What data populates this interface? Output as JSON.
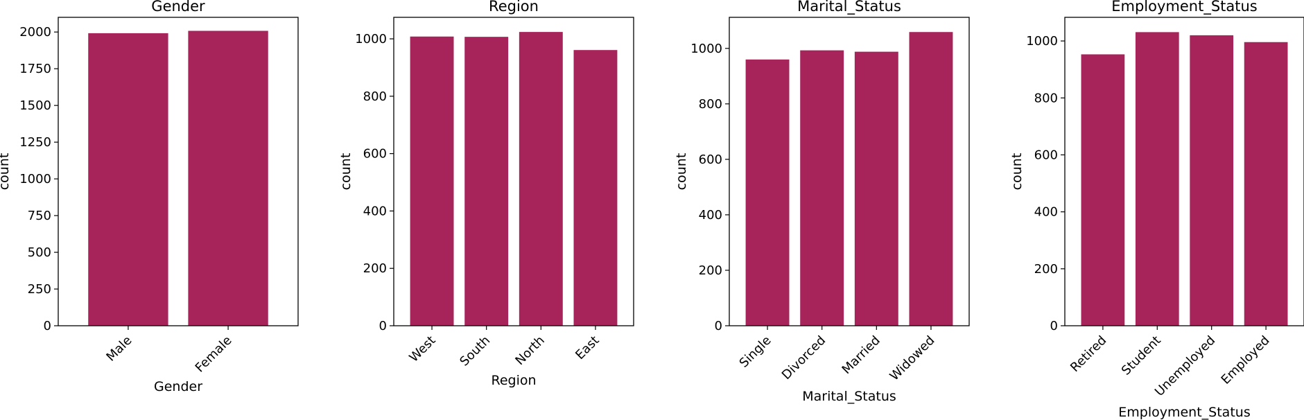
{
  "bar_color": "#a7245a",
  "chart_data": [
    {
      "type": "bar",
      "title": "Gender",
      "xlabel": "Gender",
      "ylabel": "count",
      "categories": [
        "Male",
        "Female"
      ],
      "values": [
        1992,
        2008
      ],
      "ylim": [
        0,
        2100
      ],
      "yticks": [
        0,
        250,
        500,
        750,
        1000,
        1250,
        1500,
        1750,
        2000
      ],
      "grid": false
    },
    {
      "type": "bar",
      "title": "Region",
      "xlabel": "Region",
      "ylabel": "count",
      "categories": [
        "West",
        "South",
        "North",
        "East"
      ],
      "values": [
        1008,
        1007,
        1024,
        961
      ],
      "ylim": [
        0,
        1075
      ],
      "yticks": [
        0,
        200,
        400,
        600,
        800,
        1000
      ],
      "grid": false
    },
    {
      "type": "bar",
      "title": "Marital_Status",
      "xlabel": "Marital_Status",
      "ylabel": "count",
      "categories": [
        "Single",
        "Divorced",
        "Married",
        "Widowed"
      ],
      "values": [
        960,
        993,
        988,
        1059
      ],
      "ylim": [
        0,
        1112
      ],
      "yticks": [
        0,
        200,
        400,
        600,
        800,
        1000
      ],
      "grid": false
    },
    {
      "type": "bar",
      "title": "Employment_Status",
      "xlabel": "Employment_Status",
      "ylabel": "count",
      "categories": [
        "Retired",
        "Student",
        "Unemployed",
        "Employed"
      ],
      "values": [
        953,
        1031,
        1020,
        996
      ],
      "ylim": [
        0,
        1083
      ],
      "yticks": [
        0,
        200,
        400,
        600,
        800,
        1000
      ],
      "grid": false
    }
  ]
}
